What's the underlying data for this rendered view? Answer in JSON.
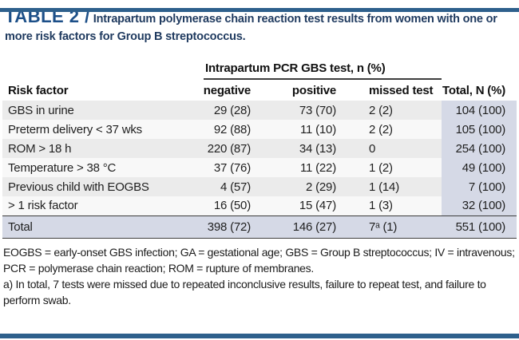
{
  "colors": {
    "accent_bar": "#2e608c",
    "title_blue": "#1c4f88",
    "caption_blue": "#1f3a5f",
    "total_column_bg": "#d5d9e6",
    "row_band_gray": "#ebebeb"
  },
  "header": {
    "table_label": "TABLE 2 /",
    "caption": "Intrapartum polymerase chain reaction test results from women with one or more risk factors for Group B streptococcus."
  },
  "table": {
    "span_header": "Intrapartum PCR GBS test, n (%)",
    "columns": {
      "risk_factor": "Risk factor",
      "negative": "negative",
      "positive": "positive",
      "missed": "missed test",
      "total": "Total, N (%)"
    },
    "rows": [
      {
        "label": "GBS in urine",
        "negative": "29 (28)",
        "positive": "73 (70)",
        "missed": "2 (2)",
        "total": "104 (100)"
      },
      {
        "label": "Preterm delivery < 37 wks",
        "negative": "92 (88)",
        "positive": "11 (10)",
        "missed": "2 (2)",
        "total": "105 (100)"
      },
      {
        "label": "ROM > 18 h",
        "negative": "220 (87)",
        "positive": "34 (13)",
        "missed": "0",
        "total": "254 (100)"
      },
      {
        "label": "Temperature > 38 °C",
        "negative": "37 (76)",
        "positive": "11 (22)",
        "missed": "1 (2)",
        "total": "49 (100)"
      },
      {
        "label": "Previous child with EOGBS",
        "negative": "4 (57)",
        "positive": "2 (29)",
        "missed": "1 (14)",
        "total": "7 (100)"
      },
      {
        "label": "> 1 risk factor",
        "negative": "16 (50)",
        "positive": "15 (47)",
        "missed": "1 (3)",
        "total": "32 (100)"
      }
    ],
    "total_row": {
      "label": "Total",
      "negative": "398 (72)",
      "positive": "146 (27)",
      "missed": "7ᵃ (1)",
      "total": "551 (100)"
    }
  },
  "footnotes": {
    "abbreviations": "EOGBS = early-onset GBS infection; GA = gestational age; GBS = Group B streptococcus; IV = intravenous; PCR = polymerase chain reaction; ROM = rupture of membranes.",
    "note_a": "a) In total, 7 tests were missed due to repeated inconclusive results, failure to repeat test, and failure to perform swab."
  }
}
